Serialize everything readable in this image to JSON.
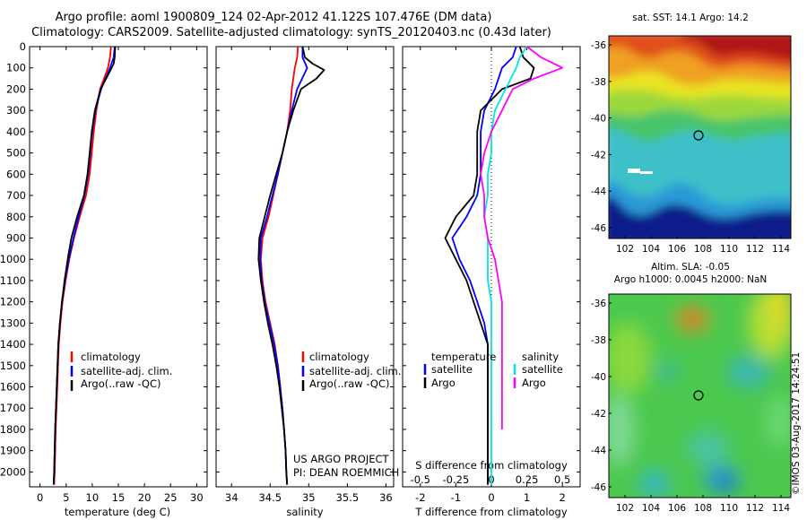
{
  "header": {
    "title_line1": "Argo profile: aoml 1900809_124 02-Apr-2012 41.122S 107.476E (DM data)",
    "title_line2": "Climatology: CARS2009. Satellite-adjusted climatology: synTS_20120403.nc (0.43d later)"
  },
  "colors": {
    "climatology": "#ff0000",
    "satellite": "#0000ff",
    "argo": "#000000",
    "satellite_s": "#00e5e5",
    "argo_s": "#ff00ff"
  },
  "chart_data": [
    {
      "type": "line",
      "id": "temperature",
      "xlabel": "temperature (deg C)",
      "xlim": [
        -2,
        32
      ],
      "xticks": [
        0,
        5,
        10,
        15,
        20,
        25,
        30
      ],
      "ylim": [
        2070,
        0
      ],
      "yticks": [
        0,
        100,
        200,
        300,
        400,
        500,
        600,
        700,
        800,
        900,
        1000,
        1100,
        1200,
        1300,
        1400,
        1500,
        1600,
        1700,
        1800,
        1900,
        2000
      ],
      "legend": [
        "climatology",
        "satellite-adj. clim.",
        "Argo(..raw -QC)"
      ],
      "series": [
        {
          "name": "climatology",
          "color": "#ff0000",
          "points": [
            [
              13.6,
              0
            ],
            [
              13.4,
              50
            ],
            [
              13,
              100
            ],
            [
              11.5,
              200
            ],
            [
              10.8,
              300
            ],
            [
              10.3,
              400
            ],
            [
              9.9,
              500
            ],
            [
              9.5,
              600
            ],
            [
              8.8,
              700
            ],
            [
              7.6,
              800
            ],
            [
              6.5,
              900
            ],
            [
              5.6,
              1000
            ],
            [
              4.9,
              1100
            ],
            [
              4.3,
              1200
            ],
            [
              3.9,
              1300
            ],
            [
              3.6,
              1400
            ],
            [
              3.3,
              1600
            ],
            [
              3.0,
              1800
            ],
            [
              2.8,
              2000
            ],
            [
              2.7,
              2060
            ]
          ]
        },
        {
          "name": "satellite-adj. clim.",
          "color": "#0000ff",
          "points": [
            [
              14.3,
              0
            ],
            [
              14.1,
              50
            ],
            [
              13.4,
              100
            ],
            [
              11.7,
              200
            ],
            [
              10.6,
              300
            ],
            [
              10,
              400
            ],
            [
              9.6,
              500
            ],
            [
              9.2,
              600
            ],
            [
              8.5,
              700
            ],
            [
              7.4,
              800
            ],
            [
              6.4,
              900
            ],
            [
              5.5,
              1000
            ],
            [
              4.8,
              1100
            ],
            [
              4.2,
              1200
            ],
            [
              3.8,
              1300
            ],
            [
              3.5,
              1400
            ],
            [
              3.2,
              1600
            ],
            [
              2.9,
              1800
            ],
            [
              2.7,
              2000
            ],
            [
              2.6,
              2060
            ]
          ]
        },
        {
          "name": "Argo(..raw -QC)",
          "color": "#000000",
          "points": [
            [
              14.4,
              0
            ],
            [
              14.3,
              50
            ],
            [
              14.1,
              80
            ],
            [
              13.3,
              120
            ],
            [
              11.6,
              200
            ],
            [
              10.5,
              300
            ],
            [
              9.9,
              400
            ],
            [
              9.5,
              500
            ],
            [
              9.1,
              600
            ],
            [
              8.4,
              700
            ],
            [
              7.1,
              800
            ],
            [
              6.0,
              900
            ],
            [
              5.3,
              1000
            ],
            [
              4.7,
              1100
            ],
            [
              4.2,
              1200
            ],
            [
              3.8,
              1300
            ],
            [
              3.5,
              1400
            ],
            [
              3.2,
              1600
            ],
            [
              2.9,
              1800
            ],
            [
              2.7,
              2000
            ],
            [
              2.6,
              2060
            ]
          ]
        }
      ]
    },
    {
      "type": "line",
      "id": "salinity",
      "xlabel": "salinity",
      "xlim": [
        33.8,
        36.1
      ],
      "xticks": [
        34,
        34.5,
        35,
        35.5,
        36
      ],
      "ylim": [
        2070,
        0
      ],
      "legend": [
        "climatology",
        "satellite-adj. clim.",
        "Argo(..raw -QC)"
      ],
      "annotation": [
        "US ARGO PROJECT",
        "PI: DEAN ROEMMICH"
      ],
      "series": [
        {
          "name": "climatology",
          "color": "#ff0000",
          "points": [
            [
              34.86,
              0
            ],
            [
              34.85,
              50
            ],
            [
              34.82,
              100
            ],
            [
              34.78,
              200
            ],
            [
              34.76,
              300
            ],
            [
              34.72,
              400
            ],
            [
              34.66,
              500
            ],
            [
              34.6,
              600
            ],
            [
              34.54,
              700
            ],
            [
              34.48,
              800
            ],
            [
              34.4,
              900
            ],
            [
              34.38,
              1000
            ],
            [
              34.4,
              1100
            ],
            [
              34.44,
              1200
            ],
            [
              34.5,
              1300
            ],
            [
              34.56,
              1400
            ],
            [
              34.6,
              1500
            ],
            [
              34.63,
              1600
            ],
            [
              34.66,
              1700
            ],
            [
              34.68,
              1800
            ],
            [
              34.7,
              1900
            ],
            [
              34.71,
              2000
            ],
            [
              34.72,
              2060
            ]
          ]
        },
        {
          "name": "satellite-adj. clim.",
          "color": "#0000ff",
          "points": [
            [
              34.92,
              0
            ],
            [
              34.92,
              50
            ],
            [
              34.98,
              100
            ],
            [
              34.85,
              200
            ],
            [
              34.78,
              300
            ],
            [
              34.72,
              400
            ],
            [
              34.66,
              500
            ],
            [
              34.6,
              600
            ],
            [
              34.53,
              700
            ],
            [
              34.46,
              800
            ],
            [
              34.38,
              900
            ],
            [
              34.37,
              1000
            ],
            [
              34.39,
              1100
            ],
            [
              34.43,
              1200
            ],
            [
              34.49,
              1300
            ],
            [
              34.55,
              1400
            ],
            [
              34.6,
              1500
            ],
            [
              34.63,
              1600
            ],
            [
              34.66,
              1700
            ],
            [
              34.68,
              1800
            ],
            [
              34.7,
              1900
            ],
            [
              34.71,
              2000
            ],
            [
              34.72,
              2060
            ]
          ]
        },
        {
          "name": "Argo(..raw -QC)",
          "color": "#000000",
          "points": [
            [
              34.92,
              0
            ],
            [
              34.95,
              50
            ],
            [
              35.05,
              80
            ],
            [
              35.2,
              110
            ],
            [
              35.1,
              150
            ],
            [
              34.9,
              200
            ],
            [
              34.8,
              300
            ],
            [
              34.72,
              400
            ],
            [
              34.66,
              500
            ],
            [
              34.58,
              600
            ],
            [
              34.5,
              700
            ],
            [
              34.43,
              800
            ],
            [
              34.36,
              900
            ],
            [
              34.35,
              1000
            ],
            [
              34.38,
              1100
            ],
            [
              34.42,
              1200
            ],
            [
              34.47,
              1300
            ],
            [
              34.53,
              1400
            ],
            [
              34.58,
              1500
            ],
            [
              34.62,
              1600
            ],
            [
              34.65,
              1700
            ],
            [
              34.68,
              1800
            ],
            [
              34.7,
              1900
            ],
            [
              34.71,
              2000
            ],
            [
              34.72,
              2060
            ]
          ]
        }
      ]
    },
    {
      "type": "line",
      "id": "difference",
      "xlabel": "T difference from climatology",
      "xlabel_top": "S difference from climatology",
      "xlim": [
        -2.5,
        2.5
      ],
      "xticks": [
        -2,
        -1,
        0,
        1,
        2
      ],
      "top_ticks": [
        "-0.5",
        "-0.25",
        "0",
        "0.25",
        "0.5"
      ],
      "ylim": [
        2070,
        0
      ],
      "legend_t_title": "temperature",
      "legend_s_title": "salinity",
      "legend_t": [
        "satellite",
        "Argo"
      ],
      "legend_s": [
        "satellite",
        "Argo"
      ],
      "series": [
        {
          "name": "temperature satellite",
          "color": "#0000ff",
          "points": [
            [
              0.7,
              0
            ],
            [
              0.6,
              50
            ],
            [
              0.3,
              100
            ],
            [
              0.1,
              200
            ],
            [
              -0.2,
              300
            ],
            [
              -0.3,
              400
            ],
            [
              -0.3,
              500
            ],
            [
              -0.3,
              600
            ],
            [
              -0.4,
              700
            ],
            [
              -0.7,
              800
            ],
            [
              -1.1,
              900
            ],
            [
              -0.9,
              1000
            ],
            [
              -0.6,
              1100
            ],
            [
              -0.4,
              1200
            ],
            [
              -0.2,
              1300
            ],
            [
              -0.1,
              1400
            ],
            [
              -0.1,
              1600
            ],
            [
              -0.1,
              1800
            ],
            [
              -0.1,
              2000
            ],
            [
              -0.1,
              2060
            ]
          ]
        },
        {
          "name": "temperature Argo",
          "color": "#000000",
          "points": [
            [
              0.8,
              0
            ],
            [
              0.9,
              50
            ],
            [
              1.2,
              100
            ],
            [
              1.1,
              150
            ],
            [
              0.3,
              200
            ],
            [
              -0.3,
              300
            ],
            [
              -0.4,
              400
            ],
            [
              -0.4,
              500
            ],
            [
              -0.4,
              600
            ],
            [
              -0.5,
              700
            ],
            [
              -1.0,
              800
            ],
            [
              -1.3,
              900
            ],
            [
              -1.0,
              1000
            ],
            [
              -0.7,
              1100
            ],
            [
              -0.5,
              1200
            ],
            [
              -0.3,
              1300
            ],
            [
              -0.1,
              1400
            ],
            [
              -0.1,
              1600
            ],
            [
              -0.1,
              1800
            ],
            [
              -0.1,
              2000
            ],
            [
              -0.1,
              2060
            ]
          ]
        },
        {
          "name": "salinity satellite",
          "color": "#00e5e5",
          "points": [
            [
              1.0,
              0
            ],
            [
              0.8,
              50
            ],
            [
              0.7,
              100
            ],
            [
              0.4,
              200
            ],
            [
              0.1,
              300
            ],
            [
              0.0,
              400
            ],
            [
              0.0,
              500
            ],
            [
              -0.1,
              600
            ],
            [
              -0.1,
              700
            ],
            [
              -0.2,
              800
            ],
            [
              -0.1,
              900
            ],
            [
              -0.1,
              1000
            ],
            [
              -0.1,
              1100
            ],
            [
              0.0,
              1200
            ],
            [
              0.0,
              1400
            ],
            [
              0.0,
              1600
            ],
            [
              0.0,
              1800
            ],
            [
              0.0,
              2000
            ],
            [
              0.0,
              2060
            ]
          ]
        },
        {
          "name": "salinity Argo",
          "color": "#ff00ff",
          "points": [
            [
              1.0,
              0
            ],
            [
              1.4,
              50
            ],
            [
              2.0,
              100
            ],
            [
              1.2,
              150
            ],
            [
              0.6,
              200
            ],
            [
              0.3,
              300
            ],
            [
              0.0,
              400
            ],
            [
              -0.2,
              500
            ],
            [
              -0.3,
              600
            ],
            [
              -0.2,
              700
            ],
            [
              -0.2,
              800
            ],
            [
              -0.1,
              900
            ],
            [
              0.1,
              1000
            ],
            [
              0.2,
              1100
            ],
            [
              0.3,
              1200
            ],
            [
              0.3,
              1300
            ],
            [
              0.3,
              1400
            ],
            [
              0.3,
              1500
            ],
            [
              0.3,
              1600
            ],
            [
              0.3,
              1700
            ],
            [
              0.3,
              1800
            ]
          ]
        }
      ]
    }
  ],
  "maps": {
    "top": {
      "title": "sat. SST: 14.1  Argo: 14.2",
      "yticks": [
        "-36",
        "-38",
        "-40",
        "-42",
        "-44",
        "-46"
      ],
      "xticks": [
        "102",
        "104",
        "106",
        "108",
        "110",
        "112",
        "114"
      ]
    },
    "bottom": {
      "title_line1": "Altim. SLA: -0.05",
      "title_line2": "Argo h1000: 0.0045 h2000: NaN",
      "yticks": [
        "-36",
        "-38",
        "-40",
        "-42",
        "-44",
        "-46"
      ],
      "xticks": [
        "102",
        "104",
        "106",
        "108",
        "110",
        "112",
        "114"
      ]
    }
  },
  "credit": "©IMOS 03-Aug-2017 14:24:51"
}
